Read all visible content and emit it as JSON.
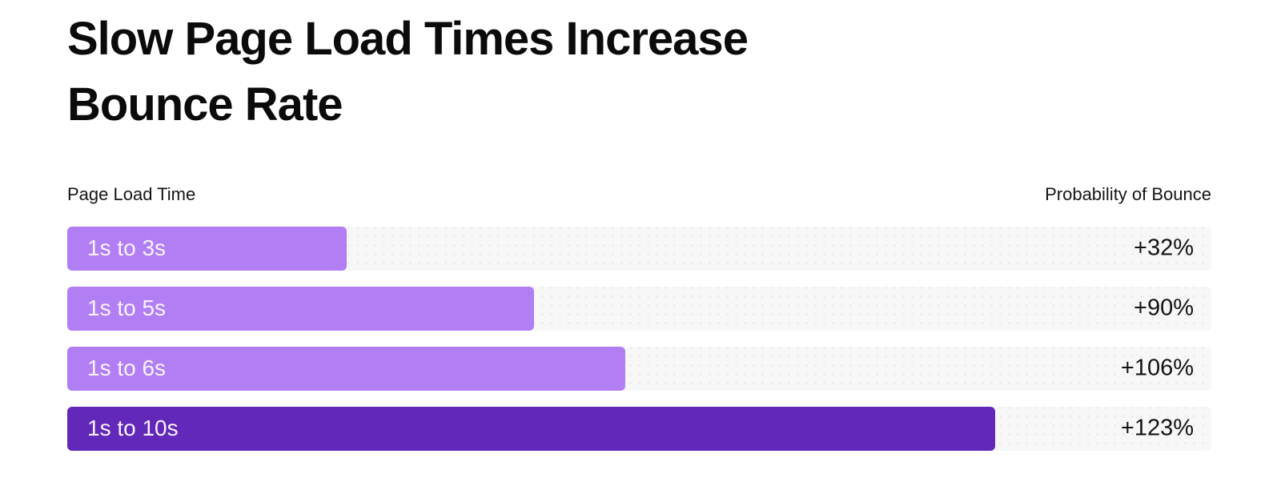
{
  "title_lines": [
    "Slow Page Load Times Increase",
    "Bounce Rate"
  ],
  "chart_data": {
    "type": "bar",
    "orientation": "horizontal",
    "title": "Slow Page Load Times Increase Bounce Rate",
    "xlabel": "Page Load Time",
    "value_axis_label": "Probability of Bounce",
    "categories": [
      "1s to 3s",
      "1s to 5s",
      "1s to 6s",
      "1s to 10s"
    ],
    "values": [
      32,
      90,
      106,
      123
    ],
    "value_labels": [
      "+32%",
      "+90%",
      "+106%",
      "+123%"
    ],
    "bar_length_seconds": [
      3,
      5,
      6,
      10
    ],
    "bar_width_pct_of_track": [
      24.4,
      40.8,
      48.8,
      81.1
    ],
    "emphasized_row_index": 3,
    "legend": "none",
    "grid": false
  },
  "colors": {
    "bar_fill": "#b17ef4",
    "bar_fill_emphasis": "#6228b9",
    "track_background": "#f7f7f7",
    "track_dot": "#e8e5ec",
    "title_text": "#0b0b0b",
    "value_text": "#141414",
    "bar_label_text": "#f8f3ff",
    "page_background": "#ffffff"
  }
}
